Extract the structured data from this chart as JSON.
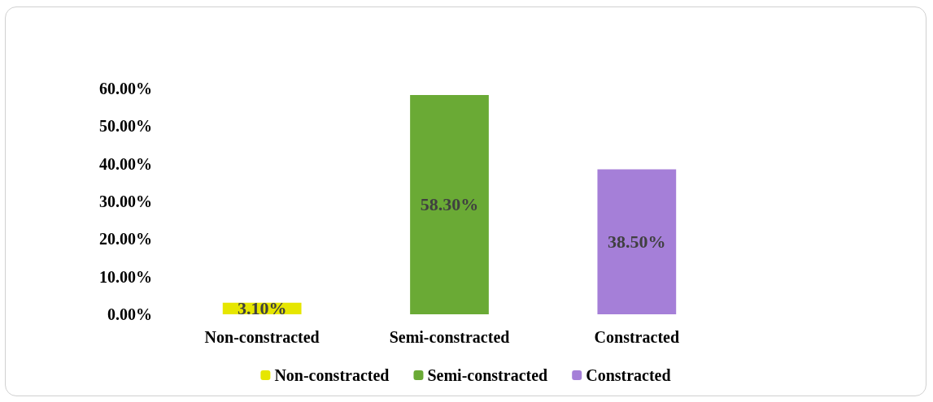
{
  "chart_data": {
    "type": "bar",
    "categories": [
      "Non-constracted",
      "Semi-constracted",
      "Constracted"
    ],
    "series": [
      {
        "name": "Non-constracted",
        "color": "#e6e600",
        "values": [
          3.1,
          null,
          null
        ],
        "value_labels": [
          "3.10%",
          null,
          null
        ]
      },
      {
        "name": "Semi-constracted",
        "color": "#6aaa35",
        "values": [
          null,
          58.3,
          null
        ],
        "value_labels": [
          null,
          "58.30%",
          null
        ]
      },
      {
        "name": "Constracted",
        "color": "#a57fd8",
        "values": [
          null,
          null,
          38.5
        ],
        "value_labels": [
          null,
          null,
          "38.50%"
        ]
      }
    ],
    "ylim": [
      0,
      60
    ],
    "yticks": [
      {
        "value": 0,
        "label": "0.00%"
      },
      {
        "value": 10,
        "label": "10.00%"
      },
      {
        "value": 20,
        "label": "20.00%"
      },
      {
        "value": 30,
        "label": "30.00%"
      },
      {
        "value": 40,
        "label": "40.00%"
      },
      {
        "value": 50,
        "label": "50.00%"
      },
      {
        "value": 60,
        "label": "60.00%"
      }
    ],
    "grid": false,
    "legend": "bottom"
  }
}
